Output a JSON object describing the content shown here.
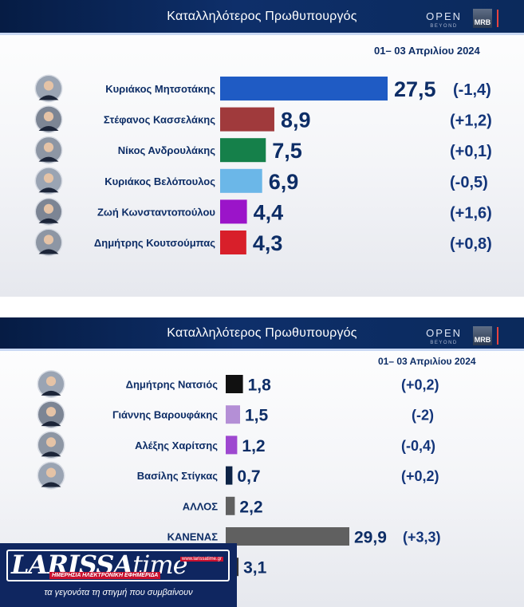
{
  "panels": [
    {
      "title": "Καταλληλότερος Πρωθυπουργός",
      "date": "01– 03 Απριλίου 2024",
      "logo_open": "OPEN",
      "logo_open_sub": "BEYOND",
      "logo_mrb": "MRB"
    },
    {
      "title": "Καταλληλότερος Πρωθυπουργός",
      "date": "01– 03 Απριλίου 2024",
      "logo_open": "OPEN",
      "logo_open_sub": "BEYOND",
      "logo_mrb": "MRB"
    }
  ],
  "chart_data": [
    {
      "type": "bar",
      "title": "Καταλληλότερος Πρωθυπουργός",
      "subtitle": "01– 03 Απριλίου 2024",
      "categories": [
        "Κυριάκος Μητσοτάκης",
        "Στέφανος Κασσελάκης",
        "Νίκος Ανδρουλάκης",
        "Κυριάκος Βελόπουλος",
        "Ζωή Κωνσταντοπούλου",
        "Δημήτρης Κουτσούμπας"
      ],
      "values": [
        27.5,
        8.9,
        7.5,
        6.9,
        4.4,
        4.3
      ],
      "value_labels": [
        "27,5",
        "8,9",
        "7,5",
        "6,9",
        "4,4",
        "4,3"
      ],
      "changes": [
        "(-1,4)",
        "(+1,2)",
        "(+0,1)",
        "(-0,5)",
        "(+1,6)",
        "(+0,8)"
      ],
      "colors": [
        "#1f5bc4",
        "#a03a3c",
        "#15804a",
        "#6bb7e8",
        "#9b14c9",
        "#d81f2a"
      ],
      "has_photo": [
        true,
        true,
        true,
        true,
        true,
        true
      ],
      "orientation": "horizontal"
    },
    {
      "type": "bar",
      "title": "Καταλληλότερος Πρωθυπουργός",
      "subtitle": "01– 03 Απριλίου 2024",
      "categories": [
        "Δημήτρης Νατσιός",
        "Γιάννης Βαρουφάκης",
        "Αλέξης Χαρίτσης",
        "Βασίλης Στίγκας",
        "ΑΛΛΟΣ",
        "ΚΑΝΕΝΑΣ",
        ""
      ],
      "values": [
        1.8,
        1.5,
        1.2,
        0.7,
        2.2,
        29.9,
        3.1
      ],
      "value_labels": [
        "1,8",
        "1,5",
        "1,2",
        "0,7",
        "2,2",
        "29,9",
        "3,1"
      ],
      "changes": [
        "(+0,2)",
        "(-2)",
        "(-0,4)",
        "(+0,2)",
        "",
        "(+3,3)",
        ""
      ],
      "colors": [
        "#111111",
        "#b48fd6",
        "#9e48d0",
        "#0d2346",
        "#606060",
        "#606060",
        "#333333"
      ],
      "has_photo": [
        true,
        true,
        true,
        true,
        false,
        false,
        false
      ],
      "orientation": "horizontal"
    }
  ],
  "watermark": {
    "brand": "LARISSA",
    "brand_suffix": "time",
    "url": "www.larissatime.gr",
    "subtitle": "ΗΜΕΡΗΣΙΑ ΗΛΕΚΤΡΟΝΙΚΗ ΕΦΗΜΕΡΙΔΑ",
    "tagline": "τα γεγονότα τη στιγμή που συμβαίνουν"
  }
}
